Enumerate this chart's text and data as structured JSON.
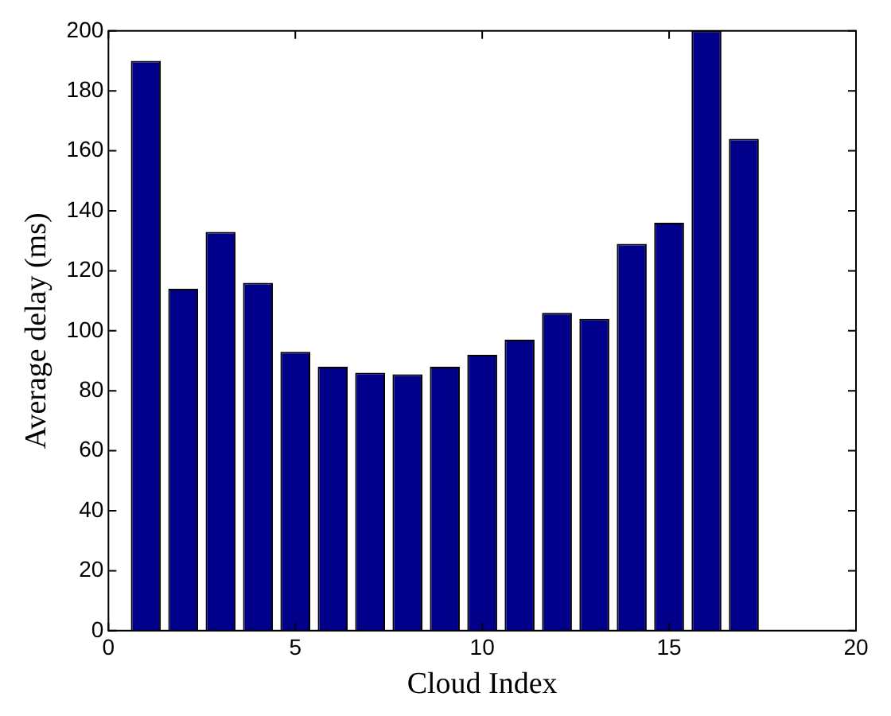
{
  "chart_data": {
    "type": "bar",
    "xlabel": "Cloud Index",
    "ylabel": "Average delay (ms)",
    "x": [
      1,
      2,
      3,
      4,
      5,
      6,
      7,
      8,
      9,
      10,
      11,
      12,
      13,
      14,
      15,
      16,
      17
    ],
    "values": [
      190,
      114,
      133,
      116,
      93,
      88,
      86,
      85.5,
      88,
      92,
      97,
      106,
      104,
      129,
      136,
      200,
      164
    ],
    "color": "#00008b",
    "xlim": [
      0,
      20
    ],
    "xticks": [
      0,
      5,
      10,
      15,
      20
    ],
    "ylim": [
      0,
      200
    ],
    "yticks": [
      0,
      20,
      40,
      60,
      80,
      100,
      120,
      140,
      160,
      180,
      200
    ],
    "grid": false,
    "legend": false
  }
}
